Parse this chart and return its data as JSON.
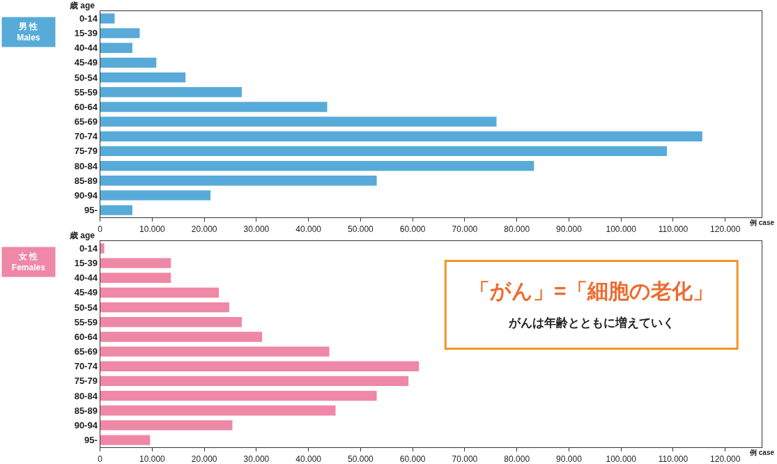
{
  "chart_data": [
    {
      "type": "bar",
      "orientation": "horizontal",
      "title": "男 性\nMales",
      "ylabel": "歳 age",
      "xlabel": "例 case",
      "color": "#58abd8",
      "categories": [
        "0-14",
        "15-39",
        "40-44",
        "45-49",
        "50-54",
        "55-59",
        "60-64",
        "65-69",
        "70-74",
        "75-79",
        "80-84",
        "85-89",
        "90-94",
        "95-"
      ],
      "values": [
        2800,
        7600,
        6200,
        10800,
        16400,
        27200,
        43600,
        76100,
        115600,
        108800,
        83300,
        53100,
        21200,
        6200
      ],
      "xlim": [
        0,
        127000
      ],
      "xticks": [
        0,
        {
          "value": 10000,
          "label": "10.000"
        },
        {
          "value": 20000,
          "label": "20.000"
        },
        {
          "value": 30000,
          "label": "30.000"
        },
        {
          "value": 40000,
          "label": "40.000"
        },
        {
          "value": 50000,
          "label": "50.000"
        },
        {
          "value": 60000,
          "label": "60.000"
        },
        {
          "value": 70000,
          "label": "70.000"
        },
        {
          "value": 80000,
          "label": "80.000"
        },
        {
          "value": 90000,
          "label": "90.000"
        },
        {
          "value": 100000,
          "label": "100.000"
        },
        {
          "value": 110000,
          "label": "110.000"
        },
        {
          "value": 120000,
          "label": "120.000"
        }
      ],
      "legend": false
    },
    {
      "type": "bar",
      "orientation": "horizontal",
      "title": "女 性\nFemales",
      "ylabel": "歳 age",
      "xlabel": "例 case",
      "color": "#ef87a6",
      "categories": [
        "0-14",
        "15-39",
        "40-44",
        "45-49",
        "50-54",
        "55-59",
        "60-64",
        "65-69",
        "70-74",
        "75-79",
        "80-84",
        "85-89",
        "90-94",
        "95-"
      ],
      "values": [
        800,
        13600,
        13600,
        22800,
        24800,
        27200,
        31100,
        44000,
        61200,
        59200,
        53100,
        45200,
        25400,
        9600
      ],
      "xlim": [
        0,
        127000
      ],
      "xticks": [
        0,
        {
          "value": 10000,
          "label": "10.000"
        },
        {
          "value": 20000,
          "label": "20.000"
        },
        {
          "value": 30000,
          "label": "30.000"
        },
        {
          "value": 40000,
          "label": "40.000"
        },
        {
          "value": 50000,
          "label": "50.000"
        },
        {
          "value": 60000,
          "label": "60.000"
        },
        {
          "value": 70000,
          "label": "70.000"
        },
        {
          "value": 80000,
          "label": "80.000"
        },
        {
          "value": 90000,
          "label": "90.000"
        },
        {
          "value": 100000,
          "label": "100.000"
        },
        {
          "value": 110000,
          "label": "110.000"
        },
        {
          "value": 120000,
          "label": "120.000"
        }
      ],
      "legend": false,
      "annotations": [
        "「がん」=「細胞の老化」",
        "がんは年齢とともに増えていく"
      ]
    }
  ]
}
